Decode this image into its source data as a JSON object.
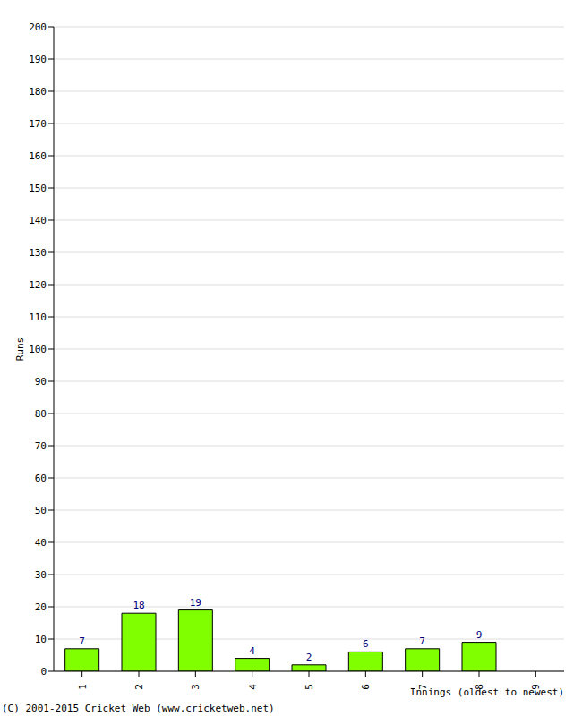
{
  "chart_data": {
    "type": "bar",
    "categories": [
      "1",
      "2",
      "3",
      "4",
      "5",
      "6",
      "7",
      "8",
      "9"
    ],
    "values": [
      7,
      18,
      19,
      4,
      2,
      6,
      7,
      9,
      0
    ],
    "color": "#80ff00",
    "ylim": [
      0,
      200
    ],
    "yticks": [
      0,
      10,
      20,
      30,
      40,
      50,
      60,
      70,
      80,
      90,
      100,
      110,
      120,
      130,
      140,
      150,
      160,
      170,
      180,
      190,
      200
    ],
    "grid": true,
    "data_labels": true,
    "y_label": "Runs",
    "x_label": "Innings (oldest to newest)",
    "annotations": [
      "(C) 2001-2015 Cricket Web (www.cricketweb.net)"
    ]
  }
}
